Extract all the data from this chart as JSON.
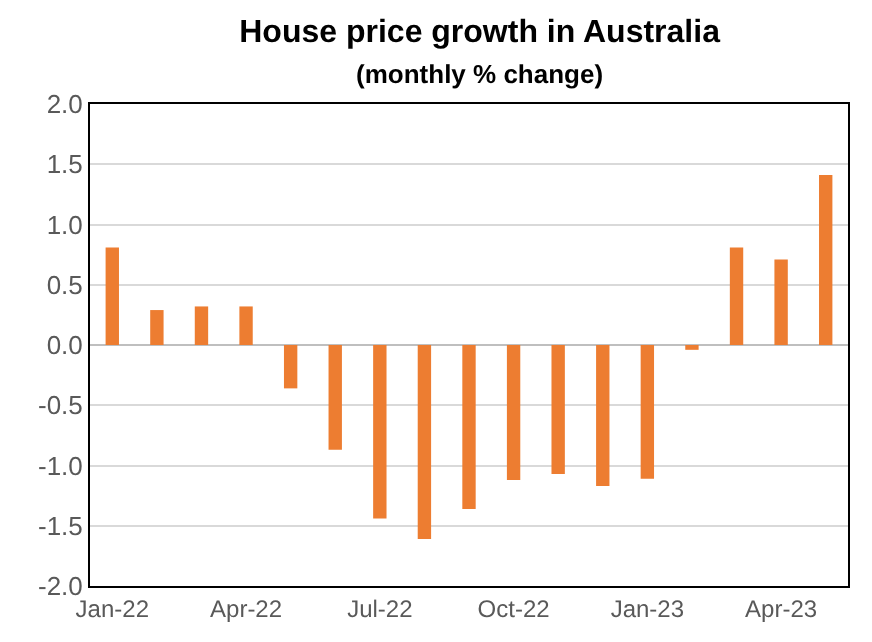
{
  "chart_data": {
    "type": "bar",
    "title": "House price growth in Australia",
    "subtitle": "(monthly % change)",
    "categories": [
      "Jan-22",
      null,
      null,
      "Apr-22",
      null,
      null,
      "Jul-22",
      null,
      null,
      "Oct-22",
      null,
      null,
      "Jan-23",
      null,
      null,
      "Apr-23",
      null
    ],
    "values": [
      0.81,
      0.29,
      0.32,
      0.32,
      -0.36,
      -0.87,
      -1.44,
      -1.61,
      -1.36,
      -1.12,
      -1.07,
      -1.17,
      -1.11,
      -0.04,
      0.81,
      0.71,
      1.41
    ],
    "color": "#ed7d31",
    "ylim": [
      -2,
      2
    ],
    "yticks": [
      {
        "value": -2,
        "label": "-2.0"
      },
      {
        "value": -1.5,
        "label": "-1.5"
      },
      {
        "value": -1,
        "label": "-1.0"
      },
      {
        "value": -0.5,
        "label": "-0.5"
      },
      {
        "value": 0,
        "label": "0.0"
      },
      {
        "value": 0.5,
        "label": "0.5"
      },
      {
        "value": 1,
        "label": "1.0"
      },
      {
        "value": 1.5,
        "label": "1.5"
      },
      {
        "value": 2,
        "label": "2.0"
      }
    ],
    "grid": "y"
  }
}
